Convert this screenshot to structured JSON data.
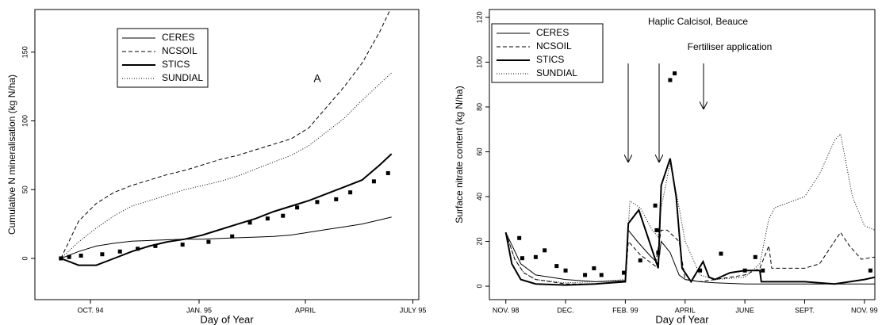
{
  "chart_data": [
    {
      "type": "line",
      "xlabel": "Day of Year",
      "ylabel": "Cumulative N mineralisation (kg N/ha)",
      "annotations": [
        "A"
      ],
      "xlim": [
        -47,
        278
      ],
      "ylim": [
        -30,
        181
      ],
      "xticks": [
        {
          "value": 0,
          "label": "OCT. 94"
        },
        {
          "value": 92,
          "label": "JAN. 95"
        },
        {
          "value": 182,
          "label": "APRIL"
        },
        {
          "value": 273,
          "label": "JULY 95"
        }
      ],
      "yticks": [
        0,
        50,
        100,
        150
      ],
      "legend": "upper left",
      "x": [
        -25,
        -10,
        5,
        20,
        35,
        50,
        65,
        80,
        95,
        110,
        125,
        140,
        155,
        170,
        185,
        200,
        215,
        230,
        245,
        255
      ],
      "series": [
        {
          "name": "CERES",
          "color": "#000000",
          "dash": "solid",
          "width": 1,
          "values": [
            0,
            5,
            9,
            11,
            12.5,
            13,
            13.5,
            14,
            14,
            14.5,
            15,
            15.5,
            16,
            17,
            19,
            21,
            23,
            25,
            28,
            30
          ]
        },
        {
          "name": "NCSOIL",
          "color": "#000000",
          "dash": "dashed",
          "width": 1,
          "values": [
            0,
            27,
            40,
            48,
            53,
            57,
            61,
            64,
            68,
            72,
            75,
            79,
            83,
            87,
            95,
            110,
            125,
            142,
            165,
            183
          ]
        },
        {
          "name": "STICS",
          "color": "#000000",
          "dash": "solid",
          "width": 2,
          "values": [
            0,
            -5,
            -5,
            0,
            5,
            9,
            12,
            14,
            17,
            21,
            25,
            29,
            34,
            38,
            42,
            47,
            52,
            57,
            68,
            76
          ]
        },
        {
          "name": "SUNDIAL",
          "color": "#000000",
          "dash": "dotted",
          "width": 1,
          "values": [
            0,
            12,
            22,
            31,
            38,
            42,
            46,
            50,
            53,
            56,
            60,
            65,
            70,
            75,
            82,
            92,
            102,
            115,
            127,
            135
          ]
        }
      ],
      "observed": {
        "color": "#000000",
        "x": [
          -25,
          -18,
          -8,
          10,
          25,
          40,
          55,
          78,
          100,
          120,
          135,
          150,
          163,
          175,
          192,
          208,
          220,
          240,
          252
        ],
        "values": [
          0,
          1,
          2,
          3,
          5,
          7,
          9,
          10,
          12,
          16,
          26,
          29,
          31,
          37,
          41,
          43,
          48,
          56,
          62
        ]
      }
    },
    {
      "type": "line",
      "xlabel": "Day of Year",
      "ylabel": "Surface nitrate content (kg N/ha)",
      "annotations": [
        "Haplic Calcisol, Beauce",
        "Fertiliser application"
      ],
      "xlim": [
        -0.55,
        12.35
      ],
      "ylim": [
        -6,
        123.5
      ],
      "xticks": [
        {
          "value": 0,
          "label": "NOV. 98"
        },
        {
          "value": 2,
          "label": "DEC."
        },
        {
          "value": 4,
          "label": "FEB. 99"
        },
        {
          "value": 6,
          "label": "APRIL"
        },
        {
          "value": 8,
          "label": "JUNE"
        },
        {
          "value": 10,
          "label": "SEPT."
        },
        {
          "value": 12,
          "label": "NOV. 99"
        }
      ],
      "yticks": [
        0,
        20,
        40,
        60,
        80,
        100,
        120
      ],
      "legend": "upper left",
      "series": [
        {
          "name": "CERES",
          "color": "#000000",
          "dash": "solid",
          "width": 1,
          "x": [
            0,
            0.5,
            1,
            2,
            3,
            4.0,
            4.1,
            4.4,
            4.8,
            5.1,
            5.2,
            5.5,
            5.8,
            6.0,
            6.5,
            7,
            8,
            9,
            10,
            11,
            12,
            12.35
          ],
          "values": [
            24,
            10,
            5,
            3,
            2,
            2.5,
            25,
            20,
            14,
            10,
            20,
            15,
            5,
            3,
            2,
            1.5,
            1,
            1,
            1,
            1,
            1,
            1
          ]
        },
        {
          "name": "NCSOIL",
          "color": "#000000",
          "dash": "dashed",
          "width": 1,
          "x": [
            0,
            0.3,
            0.6,
            1,
            2,
            3,
            4.0,
            4.1,
            4.5,
            5.0,
            5.2,
            5.4,
            5.8,
            6.0,
            6.5,
            7,
            8,
            8.5,
            8.8,
            8.9,
            9.5,
            10,
            10.5,
            11.2,
            11.5,
            11.9,
            12.35
          ],
          "values": [
            24,
            12,
            6,
            3,
            1,
            1,
            2,
            20,
            14,
            9,
            25,
            25,
            20,
            3,
            2,
            3,
            5,
            8,
            18,
            8,
            8,
            8,
            10,
            24,
            18,
            12,
            13
          ]
        },
        {
          "name": "STICS",
          "color": "#000000",
          "dash": "solid",
          "width": 2,
          "x": [
            0,
            0.2,
            0.5,
            1,
            2,
            3,
            4.0,
            4.1,
            4.45,
            4.8,
            5.1,
            5.2,
            5.5,
            5.7,
            5.9,
            6.2,
            6.6,
            6.8,
            7,
            7.5,
            8,
            8.5,
            8.55,
            9,
            10,
            11,
            12,
            12.35
          ],
          "values": [
            24,
            10,
            3,
            1,
            0.5,
            1,
            2,
            28,
            34,
            20,
            8,
            45,
            57,
            40,
            8,
            2,
            11,
            4,
            3,
            6,
            7,
            7,
            2,
            2,
            2,
            1,
            3,
            4
          ]
        },
        {
          "name": "SUNDIAL",
          "color": "#000000",
          "dash": "dotted",
          "width": 1,
          "x": [
            0,
            0.3,
            0.6,
            1,
            2,
            3,
            4.0,
            4.15,
            4.5,
            4.9,
            5.1,
            5.2,
            5.5,
            5.8,
            6.0,
            6.5,
            7,
            8,
            8.5,
            8.8,
            9,
            10,
            10.5,
            11,
            11.2,
            11.6,
            12,
            12.35
          ],
          "values": [
            24,
            12,
            6,
            3,
            1.5,
            2,
            3,
            38,
            35,
            25,
            22,
            35,
            55,
            35,
            20,
            5,
            3,
            4,
            10,
            30,
            35,
            40,
            50,
            65,
            68,
            40,
            27,
            25
          ]
        }
      ],
      "observed": {
        "color": "#000000",
        "x": [
          0.45,
          0.55,
          1.0,
          1.3,
          1.7,
          2.0,
          2.65,
          2.95,
          3.2,
          3.95,
          4.5,
          5.0,
          5.05,
          5.1,
          5.5,
          5.65,
          6.5,
          7.2,
          8.0,
          8.35,
          8.6,
          12.2
        ],
        "values": [
          21.5,
          12.5,
          13,
          16,
          9,
          7,
          5,
          8,
          5,
          6,
          11.5,
          36,
          25,
          15,
          92,
          95,
          7,
          14.5,
          7,
          13,
          7,
          7
        ]
      }
    }
  ]
}
